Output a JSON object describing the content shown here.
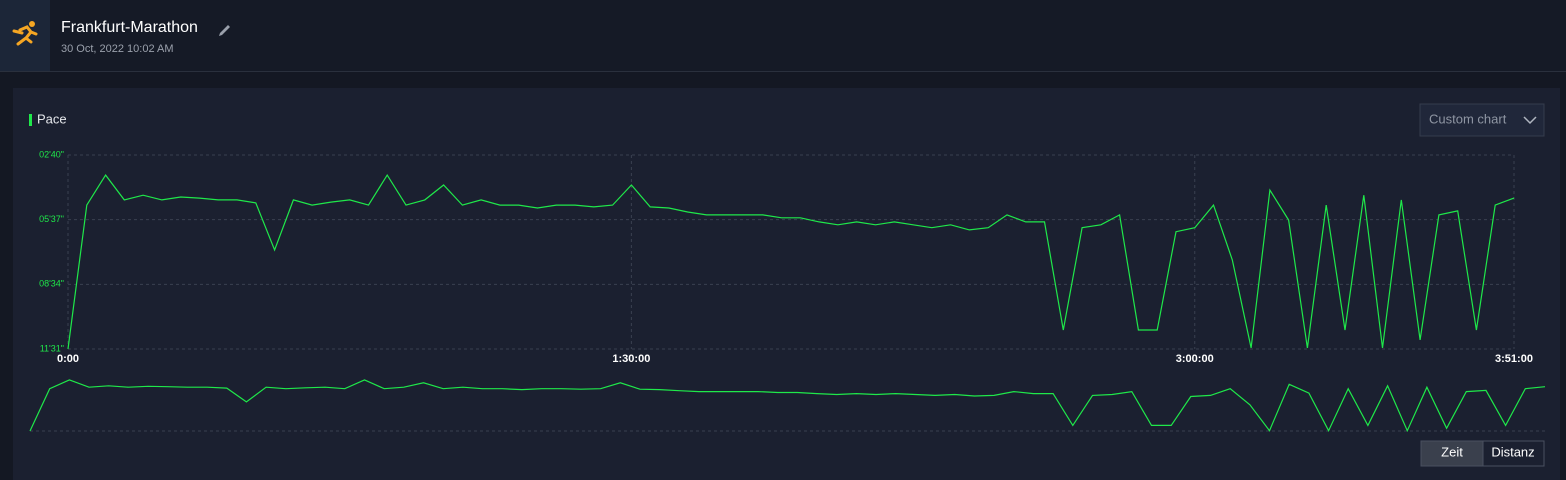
{
  "header": {
    "title": "Frankfurt-Marathon",
    "date": "30 Oct, 2022 10:02 AM"
  },
  "controls": {
    "chart_selector": "Custom chart",
    "buttons": [
      "Zeit",
      "Distanz"
    ]
  },
  "chart_data": {
    "type": "line",
    "x": [
      0,
      180,
      360,
      540,
      720,
      900,
      1080,
      1260,
      1440,
      1620,
      1800,
      1980,
      2160,
      2340,
      2520,
      2700,
      2880,
      3060,
      3240,
      3420,
      3600,
      3780,
      3960,
      4140,
      4320,
      4500,
      4680,
      4860,
      5040,
      5220,
      5400,
      5580,
      5760,
      5940,
      6120,
      6300,
      6480,
      6660,
      6840,
      7020,
      7200,
      7380,
      7560,
      7740,
      7920,
      8100,
      8280,
      8460,
      8640,
      8820,
      9000,
      9180,
      9360,
      9540,
      9720,
      9900,
      10080,
      10260,
      10440,
      10620,
      10800,
      10980,
      11160,
      11340,
      11520,
      11700,
      11880,
      12060,
      12240,
      12420,
      12600,
      12780,
      12960,
      13140,
      13320,
      13500,
      13680,
      13860
    ],
    "series": [
      {
        "name": "Pace",
        "color": "#1fe84a",
        "values": [
          691,
          297,
          215,
          283,
          270,
          283,
          275,
          278,
          283,
          283,
          291,
          420,
          283,
          297,
          289,
          283,
          297,
          215,
          297,
          283,
          242,
          297,
          283,
          297,
          297,
          305,
          297,
          297,
          302,
          297,
          242,
          302,
          305,
          316,
          324,
          324,
          324,
          324,
          332,
          332,
          343,
          351,
          343,
          351,
          343,
          351,
          359,
          351,
          365,
          359,
          324,
          343,
          343,
          639,
          359,
          351,
          324,
          639,
          639,
          370,
          359,
          297,
          447,
          688,
          256,
          338,
          688,
          297,
          639,
          270,
          688,
          283,
          666,
          324,
          313,
          639,
          297,
          278
        ]
      }
    ],
    "xlim": [
      0,
      13860
    ],
    "ylim": [
      691,
      160
    ],
    "xticks": [
      {
        "value": 0,
        "label": "0:00"
      },
      {
        "value": 5400,
        "label": "1:30:00"
      },
      {
        "value": 10800,
        "label": "3:00:00"
      },
      {
        "value": 13860,
        "label": "3:51:00"
      }
    ],
    "yticks": [
      {
        "value": 160,
        "label": "02'40\""
      },
      {
        "value": 337,
        "label": "05'37\""
      },
      {
        "value": 514,
        "label": "08'34\""
      },
      {
        "value": 691,
        "label": "11'31\""
      }
    ],
    "grid": true
  }
}
